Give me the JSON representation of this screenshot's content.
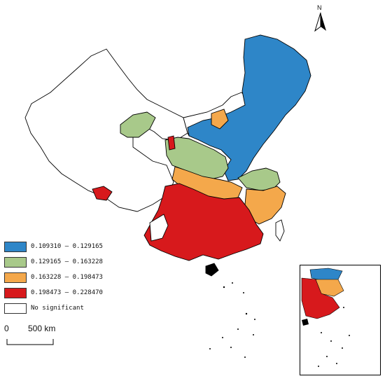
{
  "north_arrow": {
    "label": "N"
  },
  "scale_bar": {
    "start_label": "0",
    "end_label": "500 km"
  },
  "legend": {
    "items": [
      {
        "label": "0.109310 — 0.129165",
        "color": "#2e86c8"
      },
      {
        "label": "0.129165 — 0.163228",
        "color": "#a8c98a"
      },
      {
        "label": "0.163228 — 0.198473",
        "color": "#f4a84b"
      },
      {
        "label": "0.198473 — 0.228470",
        "color": "#d7191c"
      },
      {
        "label": "No significant",
        "color": "#ffffff"
      }
    ]
  },
  "map": {
    "outline_color": "#000000",
    "classes": [
      "blue",
      "green",
      "orange",
      "red",
      "white"
    ],
    "inset": "south-china-sea"
  }
}
